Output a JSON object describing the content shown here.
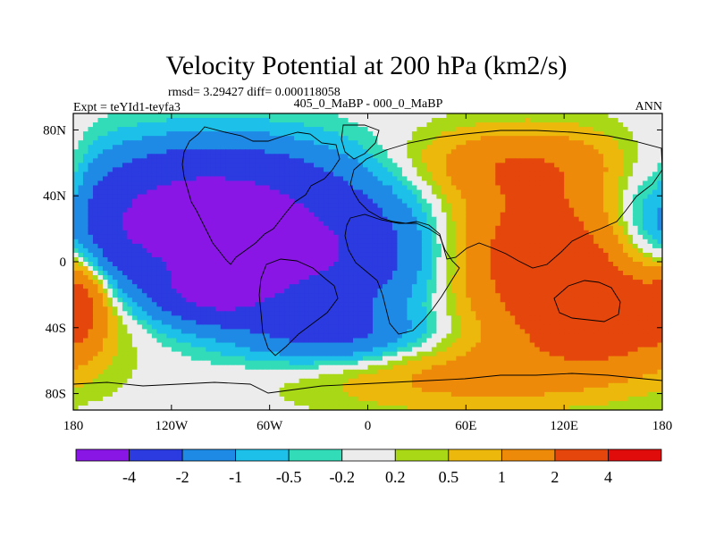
{
  "chart_data": {
    "type": "heatmap",
    "title": "Velocity Potential at 200 hPa (km2/s)",
    "stats_line": "rmsd= 3.29427 diff= 0.000118058",
    "left_string": "Expt = teYId1-teyfa3",
    "center_string": "405_0_MaBP - 000_0_MaBP",
    "right_string": "ANN",
    "xlim": [
      -180,
      180
    ],
    "ylim": [
      -90,
      90
    ],
    "x_ticks": [
      {
        "value": -180,
        "label": "180"
      },
      {
        "value": -120,
        "label": "120W"
      },
      {
        "value": -60,
        "label": "60W"
      },
      {
        "value": 0,
        "label": "0"
      },
      {
        "value": 60,
        "label": "60E"
      },
      {
        "value": 120,
        "label": "120E"
      },
      {
        "value": 180,
        "label": "180"
      }
    ],
    "y_ticks": [
      {
        "value": 80,
        "label": "80N"
      },
      {
        "value": 40,
        "label": "40N"
      },
      {
        "value": 0,
        "label": "0"
      },
      {
        "value": -40,
        "label": "40S"
      },
      {
        "value": -80,
        "label": "80S"
      }
    ],
    "levels": [
      -4,
      -2,
      -1,
      -0.5,
      -0.2,
      0.2,
      0.5,
      1,
      2,
      4
    ],
    "level_labels": [
      "-4",
      "-2",
      "-1",
      "-0.5",
      "-0.2",
      "0.2",
      "0.5",
      "1",
      "2",
      "4"
    ],
    "colors": [
      "#8a16e6",
      "#2b3be0",
      "#1f8ae6",
      "#1cc0e8",
      "#32dcb8",
      "#ececec",
      "#a8d816",
      "#ecb80c",
      "#ee8a0a",
      "#e4460c",
      "#e00c0c"
    ],
    "field_features": [
      {
        "lon": -40,
        "lat": 5,
        "amp": -4.2,
        "sx": 60,
        "sy": 28
      },
      {
        "lon": -140,
        "lat": 18,
        "amp": -3.2,
        "sx": 50,
        "sy": 22
      },
      {
        "lon": -95,
        "lat": 50,
        "amp": -2.6,
        "sx": 60,
        "sy": 20
      },
      {
        "lon": -95,
        "lat": -20,
        "amp": -3.0,
        "sx": 26,
        "sy": 12
      },
      {
        "lon": -20,
        "lat": -45,
        "amp": -1.8,
        "sx": 40,
        "sy": 12
      },
      {
        "lon": 110,
        "lat": 5,
        "amp": 3.4,
        "sx": 50,
        "sy": 35
      },
      {
        "lon": 150,
        "lat": -35,
        "amp": 2.2,
        "sx": 35,
        "sy": 20
      },
      {
        "lon": 90,
        "lat": 60,
        "amp": 1.3,
        "sx": 50,
        "sy": 15
      },
      {
        "lon": 60,
        "lat": -70,
        "amp": 1.2,
        "sx": 70,
        "sy": 15
      },
      {
        "lon": -175,
        "lat": -20,
        "amp": 1.5,
        "sx": 10,
        "sy": 20
      },
      {
        "lon": -180,
        "lat": 40,
        "amp": 0.6,
        "sx": 8,
        "sy": 20
      }
    ]
  }
}
